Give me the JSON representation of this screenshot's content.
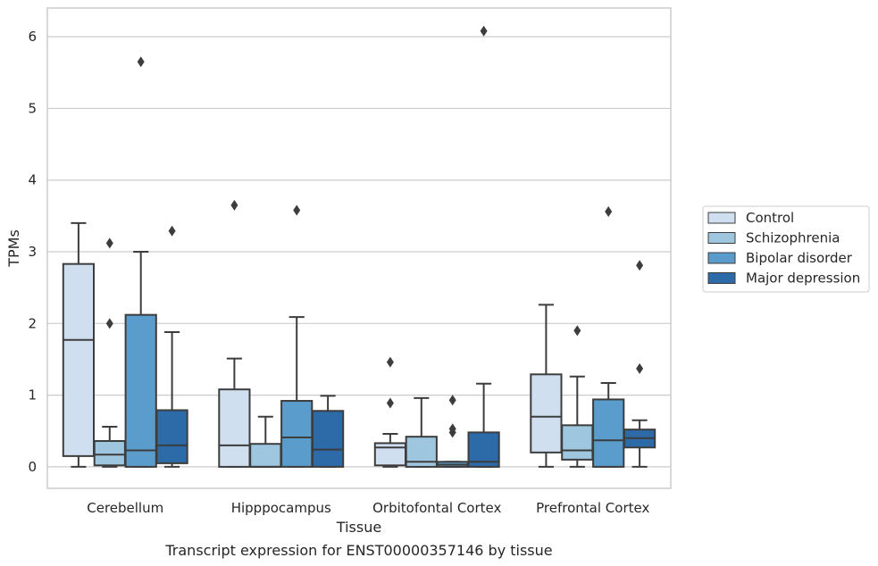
{
  "caption": "Transcript expression for ENST00000357146 by tissue",
  "chart_data": {
    "type": "box",
    "title": "",
    "xlabel": "Tissue",
    "ylabel": "TPMs",
    "ylim": [
      -0.3,
      6.4
    ],
    "yticks": [
      0,
      1,
      2,
      3,
      4,
      5,
      6
    ],
    "grid": "horizontal",
    "legend_position": "right",
    "categories": [
      "Cerebellum",
      "Hipppocampus",
      "Orbitofontal Cortex",
      "Prefrontal Cortex"
    ],
    "series": [
      {
        "name": "Control",
        "color": "#cfdff0",
        "boxes": [
          {
            "whisker_low": 0.0,
            "q1": 0.15,
            "median": 1.77,
            "q3": 2.83,
            "whisker_high": 3.4,
            "outliers": []
          },
          {
            "whisker_low": 0.0,
            "q1": 0.0,
            "median": 0.3,
            "q3": 1.08,
            "whisker_high": 1.51,
            "outliers": [
              3.65
            ]
          },
          {
            "whisker_low": 0.0,
            "q1": 0.02,
            "median": 0.27,
            "q3": 0.33,
            "whisker_high": 0.46,
            "outliers": [
              0.89,
              1.46
            ]
          },
          {
            "whisker_low": 0.0,
            "q1": 0.2,
            "median": 0.7,
            "q3": 1.29,
            "whisker_high": 2.26,
            "outliers": []
          }
        ]
      },
      {
        "name": "Schizophrenia",
        "color": "#9ec6df",
        "boxes": [
          {
            "whisker_low": 0.0,
            "q1": 0.02,
            "median": 0.17,
            "q3": 0.36,
            "whisker_high": 0.56,
            "outliers": [
              2.0,
              3.12
            ]
          },
          {
            "whisker_low": 0.0,
            "q1": 0.0,
            "median": 0.0,
            "q3": 0.32,
            "whisker_high": 0.7,
            "outliers": []
          },
          {
            "whisker_low": 0.0,
            "q1": 0.0,
            "median": 0.07,
            "q3": 0.42,
            "whisker_high": 0.96,
            "outliers": []
          },
          {
            "whisker_low": 0.0,
            "q1": 0.1,
            "median": 0.23,
            "q3": 0.58,
            "whisker_high": 1.26,
            "outliers": [
              1.9
            ]
          }
        ]
      },
      {
        "name": "Bipolar disorder",
        "color": "#5a9ccb",
        "boxes": [
          {
            "whisker_low": 0.0,
            "q1": 0.0,
            "median": 0.23,
            "q3": 2.12,
            "whisker_high": 3.0,
            "outliers": [
              5.65
            ]
          },
          {
            "whisker_low": 0.0,
            "q1": 0.0,
            "median": 0.41,
            "q3": 0.92,
            "whisker_high": 2.09,
            "outliers": [
              3.58
            ]
          },
          {
            "whisker_low": 0.0,
            "q1": 0.0,
            "median": 0.03,
            "q3": 0.07,
            "whisker_high": 0.07,
            "outliers": [
              0.48,
              0.53,
              0.93
            ]
          },
          {
            "whisker_low": 0.0,
            "q1": 0.0,
            "median": 0.37,
            "q3": 0.94,
            "whisker_high": 1.17,
            "outliers": [
              3.56
            ]
          }
        ]
      },
      {
        "name": "Major depression",
        "color": "#2c6aa8",
        "boxes": [
          {
            "whisker_low": 0.0,
            "q1": 0.05,
            "median": 0.3,
            "q3": 0.79,
            "whisker_high": 1.88,
            "outliers": [
              3.29
            ]
          },
          {
            "whisker_low": 0.0,
            "q1": 0.0,
            "median": 0.24,
            "q3": 0.78,
            "whisker_high": 0.99,
            "outliers": []
          },
          {
            "whisker_low": 0.0,
            "q1": 0.0,
            "median": 0.07,
            "q3": 0.48,
            "whisker_high": 1.16,
            "outliers": [
              6.08
            ]
          },
          {
            "whisker_low": 0.0,
            "q1": 0.27,
            "median": 0.4,
            "q3": 0.52,
            "whisker_high": 0.65,
            "outliers": [
              1.37,
              2.81
            ]
          }
        ]
      }
    ]
  }
}
